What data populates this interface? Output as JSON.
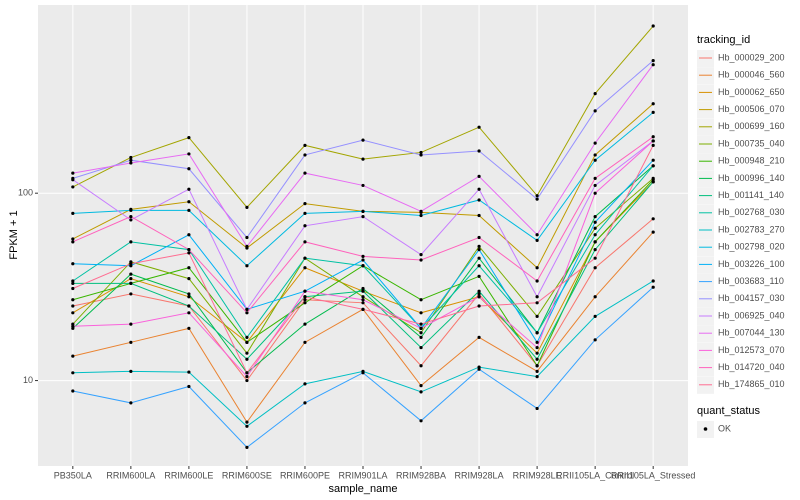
{
  "chart_data": {
    "type": "line",
    "title_x": "sample_name",
    "title_y": "FPKM + 1",
    "categories": [
      "PB350LA",
      "RRIM600LA",
      "RRIM600LE",
      "RRIM600SE",
      "RRIM600PE",
      "RRIM901LA",
      "RRIM928BA",
      "RRIM928LA",
      "RRIM928LE",
      "RRII105LA_Control",
      "RRII105LA_Stressed"
    ],
    "log_y": true,
    "grid": true,
    "ylim": [
      3.5,
      1010
    ],
    "yticks": [
      10,
      100
    ],
    "legend_title": "tracking_id",
    "point_legend": {
      "title": "quant_status",
      "labels": [
        "OK"
      ],
      "color": "#000000"
    },
    "series": [
      {
        "name": "Hb_000029_200",
        "color": "#F8766D",
        "values": [
          25,
          29,
          25,
          10,
          27,
          26,
          12,
          29,
          12,
          40,
          73
        ]
      },
      {
        "name": "Hb_000046_560",
        "color": "#EA8331",
        "values": [
          13.5,
          16,
          19,
          6,
          16,
          24,
          9.4,
          17,
          11.2,
          28,
          62
        ]
      },
      {
        "name": "Hb_000062_650",
        "color": "#D89000",
        "values": [
          23,
          35,
          28,
          16,
          40,
          30,
          23,
          28,
          14,
          55,
          115
        ]
      },
      {
        "name": "Hb_000506_070",
        "color": "#C09B00",
        "values": [
          57,
          82,
          90,
          51,
          88,
          80,
          79,
          76,
          40,
          160,
          300
        ]
      },
      {
        "name": "Hb_000699_160",
        "color": "#A3A500",
        "values": [
          108,
          155,
          198,
          84,
          180,
          152,
          165,
          225,
          97,
          340,
          780
        ]
      },
      {
        "name": "Hb_000735_040",
        "color": "#7CAE00",
        "values": [
          20,
          43,
          35,
          14,
          45,
          28,
          18,
          52,
          22,
          65,
          120
        ]
      },
      {
        "name": "Hb_000948_210",
        "color": "#39B600",
        "values": [
          27,
          33,
          40,
          16,
          26,
          41,
          27,
          36,
          12,
          55,
          118
        ]
      },
      {
        "name": "Hb_000996_140",
        "color": "#00BB4E",
        "values": [
          19,
          37,
          29,
          11,
          20,
          31,
          17,
          45,
          18,
          75,
          140
        ]
      },
      {
        "name": "Hb_001141_140",
        "color": "#00BF7D",
        "values": [
          33,
          33,
          25,
          13,
          28,
          30,
          15,
          30,
          13,
          50,
          115
        ]
      },
      {
        "name": "Hb_002768_030",
        "color": "#00C1A3",
        "values": [
          34,
          55,
          50,
          17,
          45,
          41,
          19,
          41,
          18,
          60,
          140
        ]
      },
      {
        "name": "Hb_002783_270",
        "color": "#00BFC4",
        "values": [
          11,
          11.2,
          11.1,
          5.7,
          9.6,
          11.2,
          8.7,
          11.8,
          10.5,
          22,
          34
        ]
      },
      {
        "name": "Hb_002798_020",
        "color": "#00BAE0",
        "values": [
          78,
          81,
          81,
          41,
          78,
          80,
          76,
          92,
          56,
          150,
          270
        ]
      },
      {
        "name": "Hb_003226_100",
        "color": "#00B0F6",
        "values": [
          42,
          41,
          60,
          24,
          30,
          44,
          19,
          50,
          16,
          70,
          150
        ]
      },
      {
        "name": "Hb_003683_110",
        "color": "#35A2FF",
        "values": [
          8.8,
          7.6,
          9.3,
          4.4,
          7.6,
          11,
          6.1,
          11.5,
          7.1,
          16.5,
          31.5
        ]
      },
      {
        "name": "Hb_004157_030",
        "color": "#9590FF",
        "values": [
          120,
          150,
          135,
          58,
          160,
          192,
          160,
          168,
          93,
          275,
          510
        ]
      },
      {
        "name": "Hb_006925_040",
        "color": "#C77CFF",
        "values": [
          118,
          72,
          105,
          24,
          67,
          75,
          47,
          105,
          28,
          110,
          190
        ]
      },
      {
        "name": "Hb_007044_130",
        "color": "#E76BF3",
        "values": [
          128,
          145,
          162,
          52,
          128,
          110,
          80,
          123,
          60,
          185,
          485
        ]
      },
      {
        "name": "Hb_012573_070",
        "color": "#FA62DB",
        "values": [
          19.5,
          20,
          23,
          10.5,
          30,
          27,
          19,
          28,
          15,
          100,
          190
        ]
      },
      {
        "name": "Hb_014720_040",
        "color": "#FF62BC",
        "values": [
          55,
          75,
          50,
          23,
          55,
          46,
          44,
          58,
          34,
          120,
          200
        ]
      },
      {
        "name": "Hb_174865_010",
        "color": "#FF6C91",
        "values": [
          31,
          42,
          48,
          11,
          28,
          24,
          20,
          25,
          26,
          45,
          180
        ]
      }
    ]
  }
}
